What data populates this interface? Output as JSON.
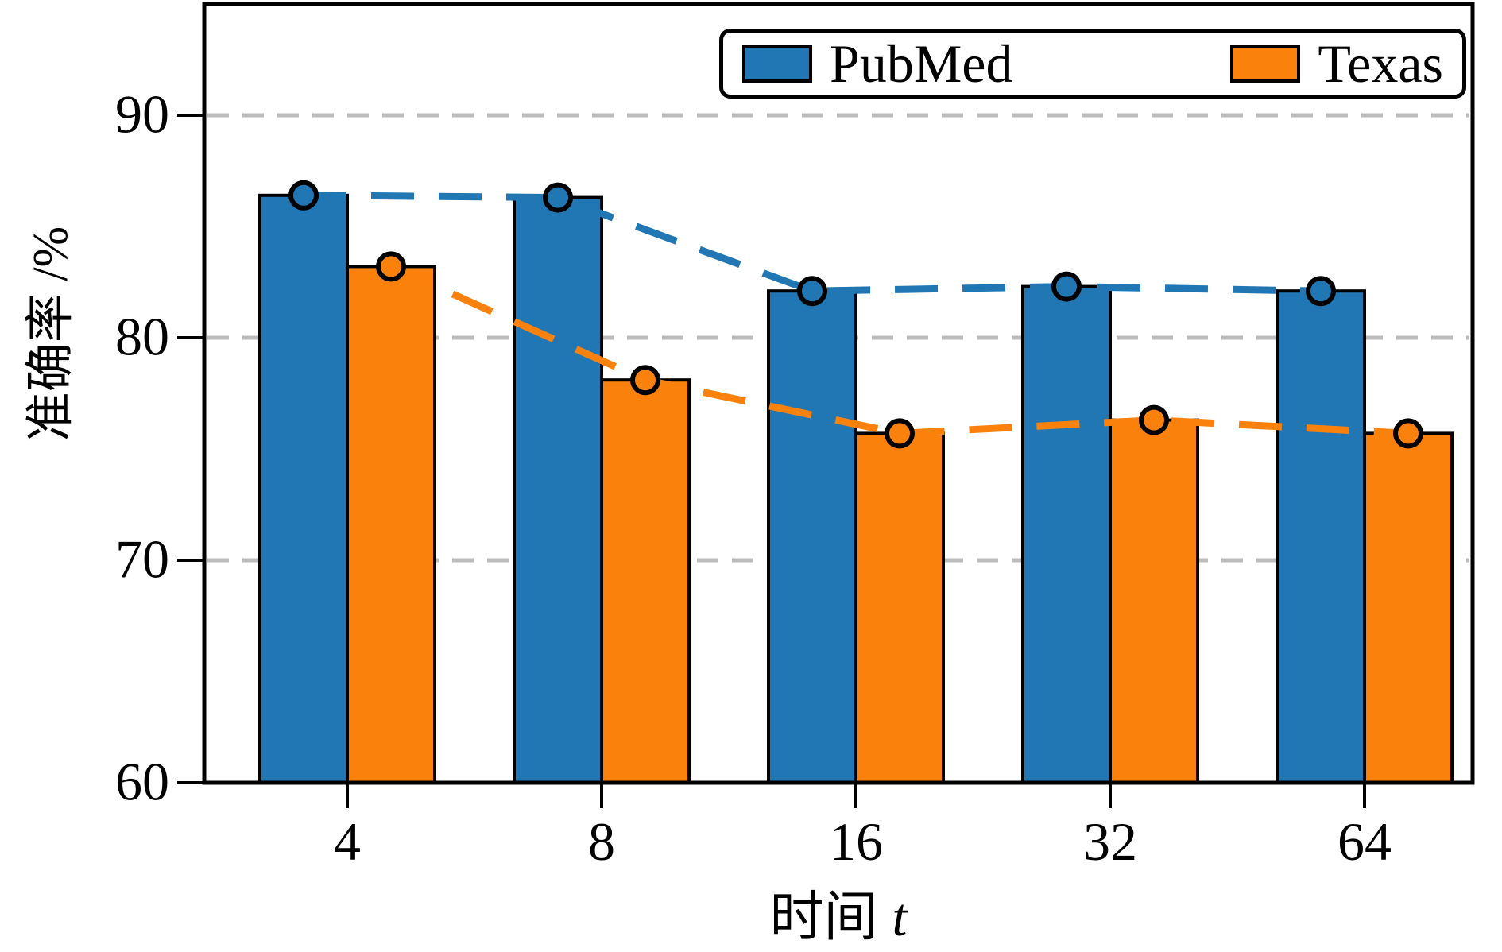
{
  "chart_data": {
    "type": "bar",
    "overlay": "dashed trend line with circle markers on bar tops, one per series",
    "categories": [
      "4",
      "8",
      "16",
      "32",
      "64"
    ],
    "series": [
      {
        "name": "PubMed",
        "color": "#2177b4",
        "values": [
          86.4,
          86.3,
          82.1,
          82.3,
          82.1
        ]
      },
      {
        "name": "Texas",
        "color": "#fb810d",
        "values": [
          83.2,
          78.1,
          75.7,
          76.3,
          75.7
        ]
      }
    ],
    "title": "",
    "xlabel": {
      "text": "时间",
      "var": "t"
    },
    "ylabel": "准确率 /%",
    "ylim": [
      60,
      95
    ],
    "yticks": [
      "60",
      "70",
      "80",
      "90"
    ],
    "grid": {
      "axis": "y",
      "values": [
        70,
        80,
        90
      ],
      "style": "dashed",
      "color": "#bbbbbb"
    },
    "legend_position": "top-right",
    "frame_color": "#000000"
  }
}
